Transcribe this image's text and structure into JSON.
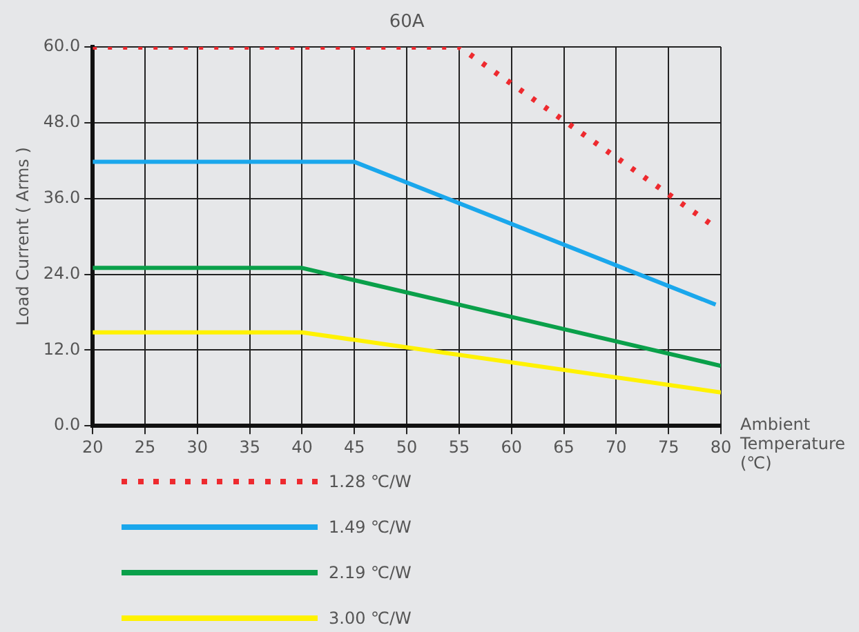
{
  "chart_data": {
    "type": "line",
    "title": "60A",
    "xlabel": "Ambient Temperature (℃)",
    "ylabel": "Load Current ( Arms )",
    "xlim": [
      20,
      80
    ],
    "xticks": [
      20,
      25,
      30,
      35,
      40,
      45,
      50,
      55,
      60,
      65,
      70,
      75,
      80
    ],
    "ylim": [
      0,
      60
    ],
    "yticks": [
      {
        "value": 0,
        "label": "0.0"
      },
      {
        "value": 12,
        "label": "12.0"
      },
      {
        "value": 24,
        "label": "24.0"
      },
      {
        "value": 36,
        "label": "36.0"
      },
      {
        "value": 48,
        "label": "48.0"
      },
      {
        "value": 60,
        "label": "60.0"
      }
    ],
    "grid": true,
    "legend": "bottom",
    "marker": "none",
    "series": [
      {
        "name": "1.28 ℃/W",
        "color": "#ee2a2f",
        "line_style": "dotted",
        "x": [
          20,
          55,
          79
        ],
        "values": [
          60,
          60,
          32
        ]
      },
      {
        "name": "1.49 ℃/W",
        "color": "#1aa7ec",
        "line_style": "solid",
        "x": [
          20,
          45,
          79.5
        ],
        "values": [
          41.8,
          41.8,
          19.2
        ]
      },
      {
        "name": "2.19 ℃/W",
        "color": "#0aa04a",
        "line_style": "solid",
        "x": [
          20,
          40,
          80
        ],
        "values": [
          25,
          25,
          9.5
        ]
      },
      {
        "name": "3.00 ℃/W",
        "color": "#fff200",
        "line_style": "solid",
        "x": [
          20,
          40,
          80
        ],
        "values": [
          14.8,
          14.8,
          5.3
        ]
      }
    ]
  }
}
